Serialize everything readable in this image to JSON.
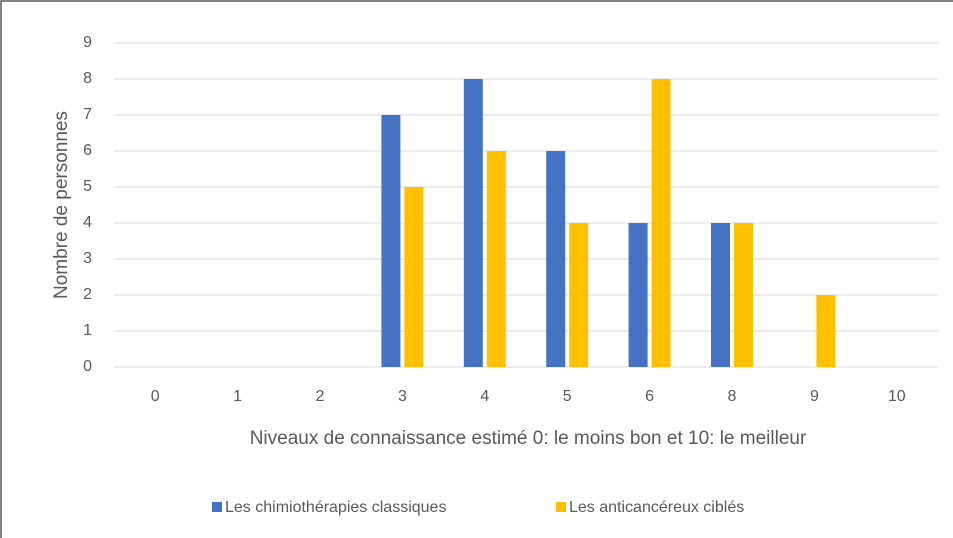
{
  "chart_data": {
    "type": "bar",
    "x_label": "Niveaux de connaissance estimé 0: le moins bon et 10: le meilleur",
    "y_label": "Nombre de personnes",
    "categories": [
      "0",
      "1",
      "2",
      "3",
      "4",
      "5",
      "6",
      "8",
      "9",
      "10"
    ],
    "series": [
      {
        "name": "Les chimiothérapies classiques",
        "color": "#4472c4",
        "values": [
          0,
          0,
          0,
          7,
          8,
          6,
          4,
          4,
          0,
          0
        ]
      },
      {
        "name": "Les anticancéreux ciblés",
        "color": "#ffc000",
        "values": [
          0,
          0,
          0,
          5,
          6,
          4,
          8,
          4,
          2,
          0
        ]
      }
    ],
    "ylim": [
      0,
      9
    ],
    "yticks": [
      0,
      1,
      2,
      3,
      4,
      5,
      6,
      7,
      8,
      9
    ],
    "grid": true,
    "legend": "bottom"
  }
}
